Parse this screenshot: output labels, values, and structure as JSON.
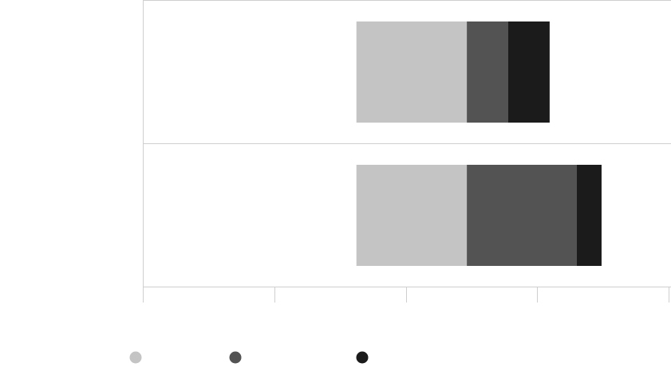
{
  "chart_data": {
    "type": "bar",
    "orientation": "horizontal",
    "stacked": true,
    "title": "",
    "xlabel": "",
    "ylabel": "",
    "categories": [
      "",
      ""
    ],
    "xlim": [
      0,
      4
    ],
    "x_ticks": [
      0,
      1,
      2,
      3,
      4
    ],
    "x_tick_labels": [
      "",
      "",
      "",
      "",
      ""
    ],
    "grid": true,
    "legend_position": "bottom-left",
    "series": [
      {
        "name": "",
        "color": "#c4c4c4",
        "start": [
          1.625,
          1.625
        ],
        "values": [
          0.84,
          0.84
        ]
      },
      {
        "name": "",
        "color": "#535353",
        "values": [
          0.315,
          0.835
        ]
      },
      {
        "name": "",
        "color": "#1b1b1b",
        "values": [
          0.315,
          0.19
        ]
      }
    ]
  }
}
